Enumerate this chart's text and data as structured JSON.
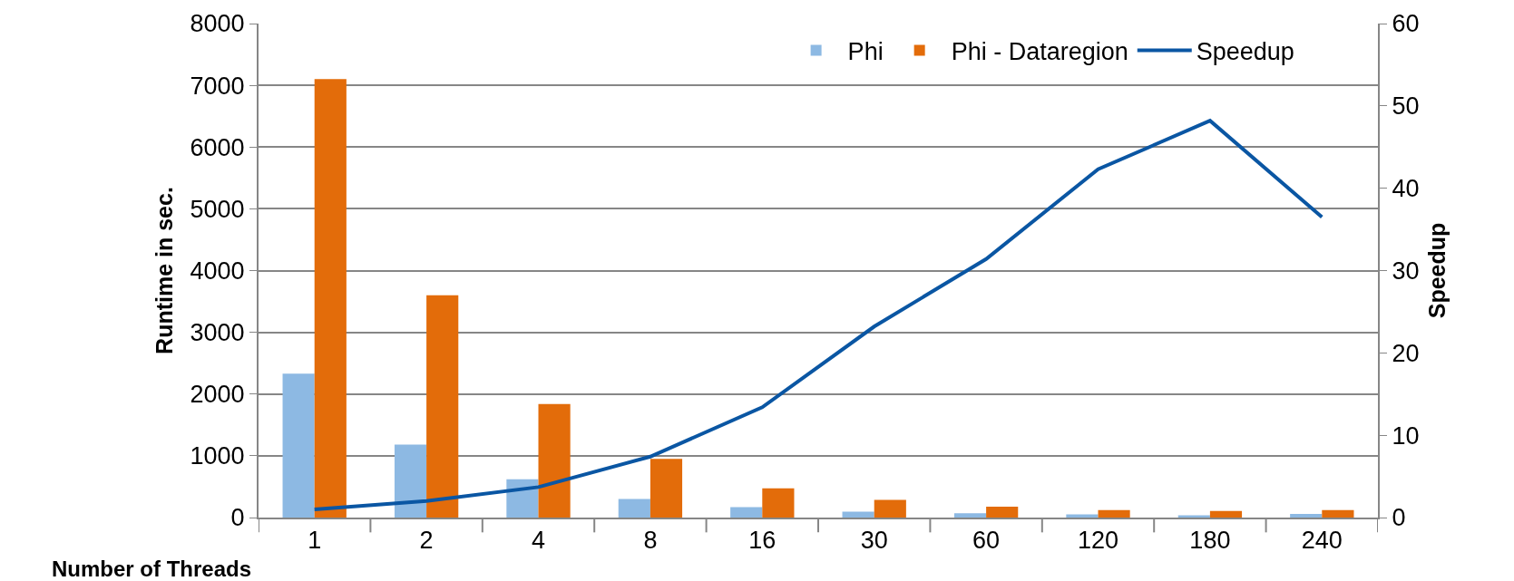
{
  "chart_data": {
    "type": "bar",
    "xlabel": "Number of Threads",
    "ylabel": "Runtime in sec.",
    "y2label": "Speedup",
    "categories": [
      "1",
      "2",
      "4",
      "8",
      "16",
      "30",
      "60",
      "120",
      "180",
      "240"
    ],
    "series": [
      {
        "name": "Phi",
        "color": "#8db9e3",
        "values": [
          2330,
          1180,
          620,
          300,
          170,
          95,
          70,
          50,
          35,
          60
        ]
      },
      {
        "name": "Phi - Dataregion",
        "color": "#e36c0a",
        "values": [
          7100,
          3600,
          1840,
          950,
          475,
          285,
          175,
          120,
          105,
          120
        ]
      },
      {
        "name": "Speedup",
        "type": "line",
        "axis": "y2",
        "color": "#0a56a3",
        "values": [
          1.0,
          2.0,
          3.7,
          7.4,
          13.4,
          23.2,
          31.4,
          42.3,
          48.2,
          36.5
        ]
      }
    ],
    "ylim": [
      0,
      8000
    ],
    "yticks": [
      0,
      1000,
      2000,
      3000,
      4000,
      5000,
      6000,
      7000,
      8000
    ],
    "y2lim": [
      0,
      60
    ],
    "y2ticks": [
      0,
      10,
      20,
      30,
      40,
      50,
      60
    ],
    "grid": "y",
    "legend": "top right",
    "marker": "none",
    "line_style": "solid"
  }
}
